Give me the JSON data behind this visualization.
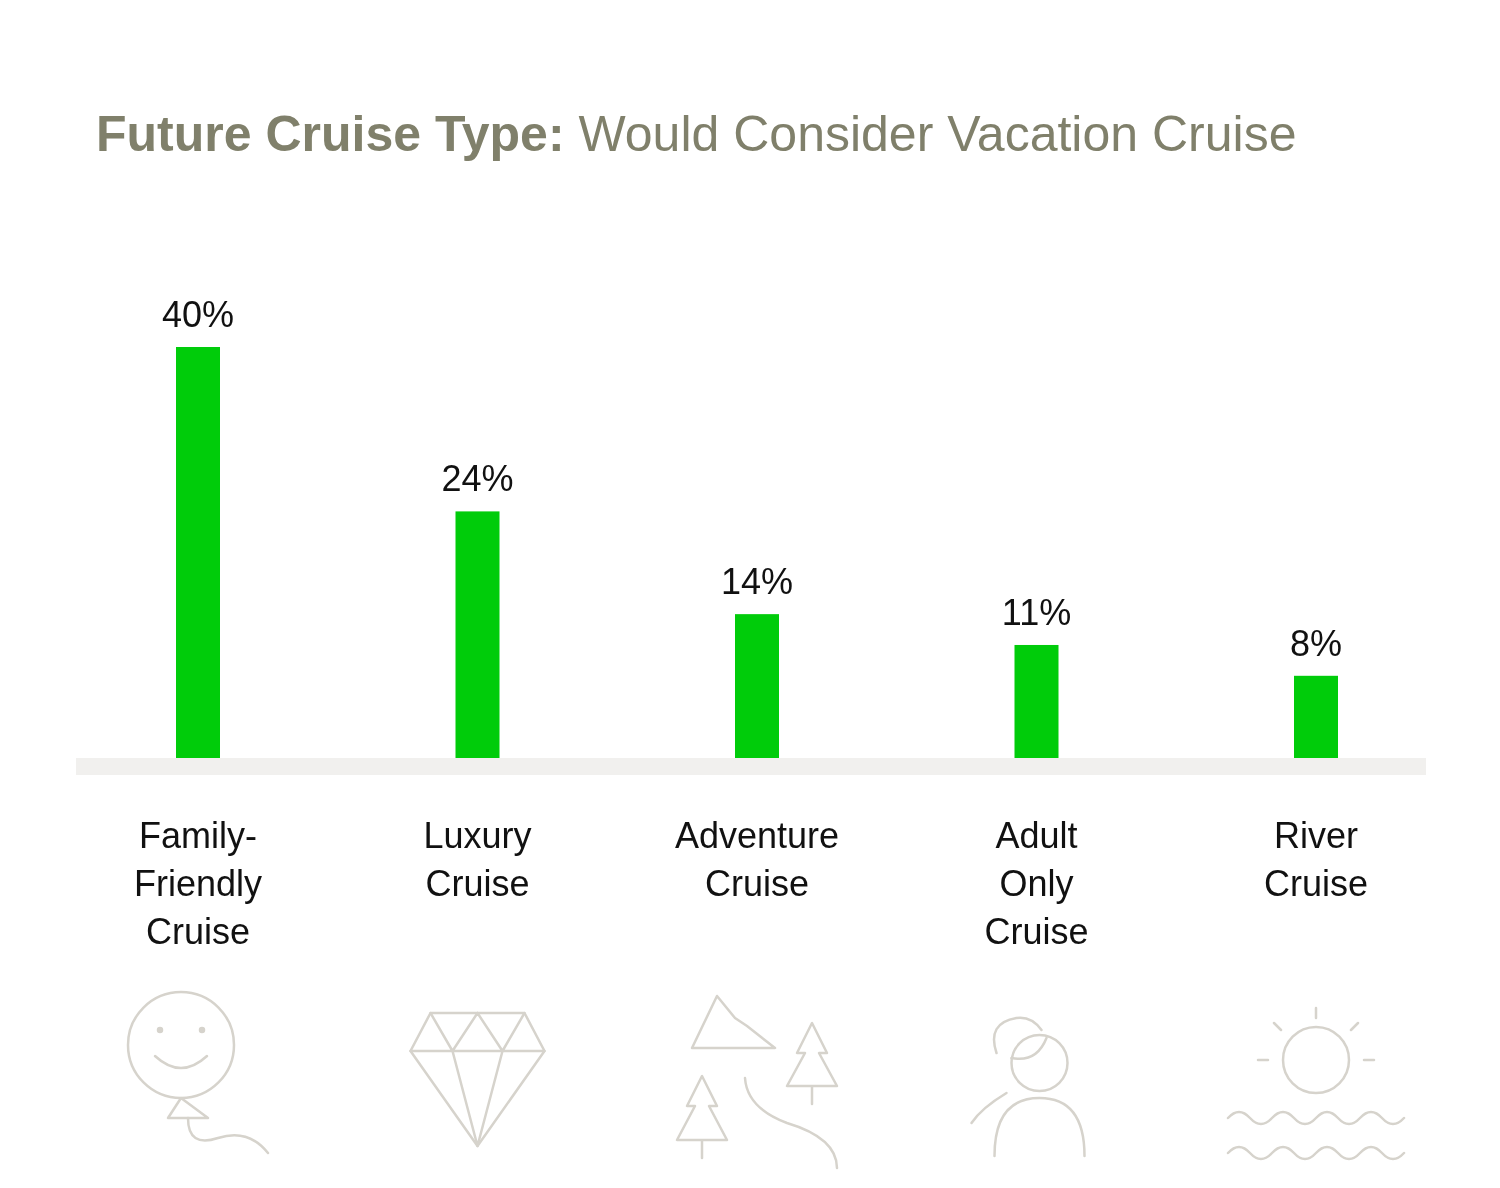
{
  "chart_data": {
    "type": "bar",
    "title": "Future Cruise Type:",
    "subtitle": "Would Consider Vacation Cruise",
    "categories": [
      "Family-Friendly Cruise",
      "Luxury Cruise",
      "Adventure Cruise",
      "Adult Only Cruise",
      "River Cruise"
    ],
    "values": [
      40,
      24,
      14,
      11,
      8
    ],
    "color": "#00cc0a",
    "data_labels": true,
    "value_labels": [
      "40%",
      "24%",
      "14%",
      "11%",
      "8%"
    ]
  }
}
